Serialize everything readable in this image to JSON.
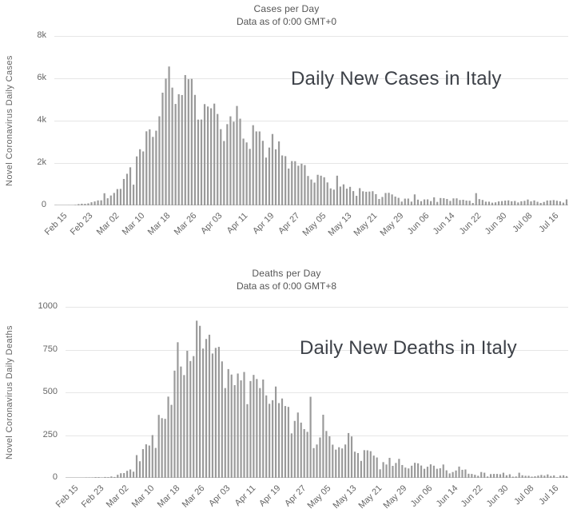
{
  "page": {
    "background": "#ffffff"
  },
  "chart_data": [
    {
      "type": "bar",
      "title": "Cases per Day",
      "subtitle": "Data as of 0:00 GMT+0",
      "annotation": "Daily New Cases in Italy",
      "ylabel": "Novel Coronavirus Daily Cases",
      "xlabel": "",
      "bar_color": "#9a9a9a",
      "grid_color": "#e6e6e6",
      "axis_line_color": "#cccccc",
      "tick_label_color": "#666666",
      "ylim": [
        0,
        8000
      ],
      "yticks": [
        0,
        2000,
        4000,
        6000,
        8000
      ],
      "ytick_labels": [
        "0",
        "2k",
        "4k",
        "6k",
        "8k"
      ],
      "x_tick_labels": [
        "Feb 15",
        "Feb 23",
        "Mar 02",
        "Mar 10",
        "Mar 18",
        "Mar 26",
        "Apr 03",
        "Apr 11",
        "Apr 19",
        "Apr 27",
        "May 05",
        "May 13",
        "May 21",
        "May 29",
        "Jun 06",
        "Jun 14",
        "Jun 22",
        "Jun 30",
        "Jul 08",
        "Jul 16"
      ],
      "x_tick_step": 8,
      "legend": "off",
      "grid": "horizontal",
      "values": [
        3,
        0,
        0,
        0,
        3,
        0,
        17,
        59,
        78,
        72,
        94,
        147,
        185,
        234,
        239,
        573,
        335,
        466,
        587,
        769,
        778,
        1247,
        1492,
        1797,
        977,
        2313,
        2651,
        2547,
        3497,
        3590,
        3233,
        3526,
        4207,
        5322,
        5986,
        6557,
        5560,
        4789,
        5249,
        5210,
        6153,
        5959,
        5974,
        5217,
        4050,
        4053,
        4782,
        4668,
        4585,
        4805,
        4316,
        3599,
        3039,
        3836,
        4204,
        3951,
        4694,
        4092,
        3153,
        2972,
        2667,
        3786,
        3493,
        3491,
        3047,
        2256,
        2729,
        3370,
        2646,
        3021,
        2357,
        2324,
        1739,
        2091,
        2086,
        1872,
        1965,
        1900,
        1389,
        1221,
        1075,
        1444,
        1401,
        1327,
        1083,
        802,
        744,
        1402,
        888,
        992,
        789,
        875,
        675,
        451,
        813,
        665,
        642,
        652,
        669,
        531,
        300,
        397,
        584,
        593,
        516,
        416,
        355,
        178,
        318,
        321,
        177,
        518,
        270,
        197,
        280,
        283,
        202,
        379,
        163,
        346,
        338,
        301,
        210,
        329,
        331,
        251,
        264,
        224,
        218,
        113,
        577,
        296,
        255,
        175,
        174,
        126,
        142,
        187,
        201,
        223,
        235,
        192,
        208,
        138,
        193,
        214,
        276,
        188,
        234,
        169,
        114,
        162,
        230,
        233,
        249,
        218,
        190,
        128,
        282
      ]
    },
    {
      "type": "bar",
      "title": "Deaths per Day",
      "subtitle": "Data as of 0:00 GMT+8",
      "annotation": "Daily New Deaths in Italy",
      "ylabel": "Novel Coronavirus Daily Deaths",
      "xlabel": "",
      "bar_color": "#9a9a9a",
      "grid_color": "#e6e6e6",
      "axis_line_color": "#cccccc",
      "tick_label_color": "#666666",
      "ylim": [
        0,
        1000
      ],
      "yticks": [
        0,
        250,
        500,
        750,
        1000
      ],
      "ytick_labels": [
        "0",
        "250",
        "500",
        "750",
        "1000"
      ],
      "x_tick_labels": [
        "Feb 15",
        "Feb 23",
        "Mar 02",
        "Mar 10",
        "Mar 18",
        "Mar 26",
        "Apr 03",
        "Apr 11",
        "Apr 19",
        "Apr 27",
        "May 05",
        "May 13",
        "May 21",
        "May 29",
        "Jun 06",
        "Jun 14",
        "Jun 22",
        "Jun 30",
        "Jul 08",
        "Jul 16"
      ],
      "x_tick_step": 8,
      "legend": "off",
      "grid": "horizontal",
      "values": [
        0,
        0,
        0,
        0,
        0,
        0,
        1,
        1,
        1,
        4,
        4,
        1,
        5,
        4,
        8,
        5,
        18,
        27,
        28,
        41,
        49,
        36,
        133,
        97,
        168,
        196,
        189,
        250,
        175,
        368,
        349,
        345,
        475,
        427,
        627,
        793,
        651,
        601,
        743,
        683,
        712,
        919,
        889,
        756,
        812,
        837,
        727,
        760,
        766,
        681,
        525,
        636,
        604,
        542,
        610,
        570,
        619,
        431,
        566,
        602,
        578,
        525,
        575,
        482,
        433,
        454,
        534,
        437,
        464,
        420,
        415,
        260,
        333,
        382,
        323,
        285,
        269,
        474,
        174,
        195,
        236,
        369,
        274,
        243,
        194,
        165,
        179,
        172,
        195,
        262,
        242,
        153,
        145,
        99,
        162,
        161,
        156,
        130,
        119,
        50,
        92,
        78,
        117,
        70,
        87,
        111,
        75,
        60,
        55,
        71,
        88,
        85,
        72,
        53,
        65,
        79,
        71,
        53,
        56,
        78,
        44,
        26,
        34,
        43,
        66,
        47,
        49,
        24,
        23,
        18,
        12,
        34,
        30,
        8,
        22,
        23,
        23,
        21,
        30,
        15,
        21,
        7,
        8,
        30,
        15,
        12,
        12,
        7,
        9,
        13,
        17,
        13,
        20,
        11,
        14,
        3,
        13,
        15,
        10
      ]
    }
  ]
}
